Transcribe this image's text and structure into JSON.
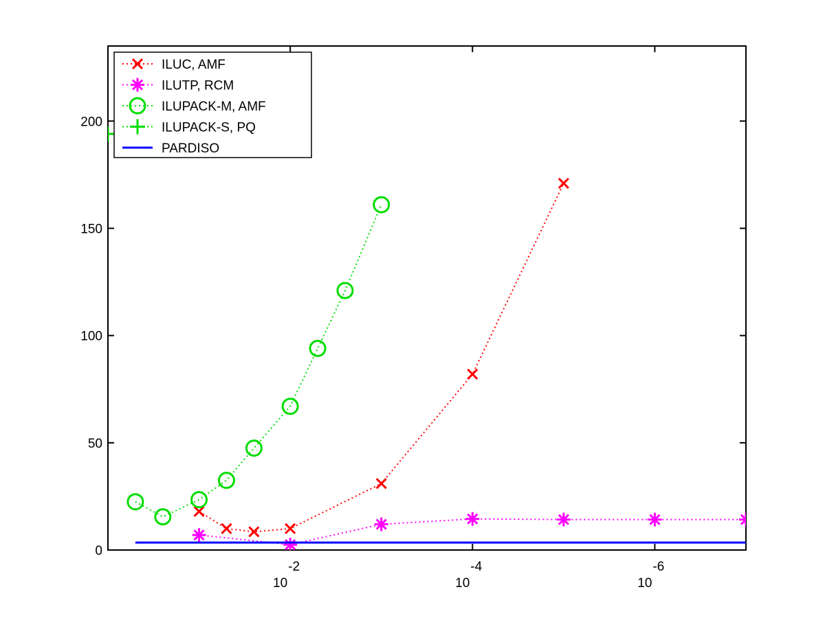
{
  "chart_data": {
    "type": "line",
    "title": "",
    "xlabel": "",
    "ylabel": "",
    "x_scale": "log",
    "x_reversed": true,
    "xlim": [
      1,
      1e-07
    ],
    "ylim": [
      0,
      235
    ],
    "x_ticks": [
      {
        "value": 0.01,
        "base": "10",
        "exponent": "-2"
      },
      {
        "value": 0.0001,
        "base": "10",
        "exponent": "-4"
      },
      {
        "value": 1e-06,
        "base": "10",
        "exponent": "-6"
      }
    ],
    "y_ticks": [
      {
        "value": 0,
        "label": "0"
      },
      {
        "value": 50,
        "label": "50"
      },
      {
        "value": 100,
        "label": "100"
      },
      {
        "value": 150,
        "label": "150"
      },
      {
        "value": 200,
        "label": "200"
      }
    ],
    "grid": false,
    "legend_position": "top-left",
    "series": [
      {
        "name": "ILUC, AMF",
        "color": "#ff0000",
        "line_style": "dotted",
        "marker": "x",
        "points": [
          {
            "x": 0.1,
            "y": 18
          },
          {
            "x": 0.05,
            "y": 10
          },
          {
            "x": 0.025,
            "y": 8.5
          },
          {
            "x": 0.01,
            "y": 10
          },
          {
            "x": 0.001,
            "y": 31
          },
          {
            "x": 0.0001,
            "y": 82
          },
          {
            "x": 1e-05,
            "y": 171
          }
        ]
      },
      {
        "name": "ILUTP, RCM",
        "color": "#ff00ff",
        "line_style": "dotted",
        "marker": "asterisk",
        "points": [
          {
            "x": 0.1,
            "y": 7
          },
          {
            "x": 0.01,
            "y": 2.5
          },
          {
            "x": 0.001,
            "y": 12
          },
          {
            "x": 0.0001,
            "y": 14.5
          },
          {
            "x": 1e-05,
            "y": 14.2
          },
          {
            "x": 1e-06,
            "y": 14.2
          },
          {
            "x": 1e-07,
            "y": 14.2
          }
        ]
      },
      {
        "name": "ILUPACK-M, AMF",
        "color": "#00dd00",
        "line_style": "dotted",
        "marker": "circle",
        "points": [
          {
            "x": 0.5,
            "y": 22.5
          },
          {
            "x": 0.25,
            "y": 15.5
          },
          {
            "x": 0.1,
            "y": 23.5
          },
          {
            "x": 0.05,
            "y": 32.5
          },
          {
            "x": 0.025,
            "y": 47.5
          },
          {
            "x": 0.01,
            "y": 67
          },
          {
            "x": 0.005,
            "y": 94
          },
          {
            "x": 0.0025,
            "y": 121
          },
          {
            "x": 0.001,
            "y": 161
          }
        ]
      },
      {
        "name": "ILUPACK-S, PQ",
        "color": "#00dd00",
        "line_style": "dotted",
        "marker": "plus",
        "points": [
          {
            "x": 1,
            "y": 194
          }
        ]
      },
      {
        "name": "PARDISO",
        "color": "#0000ff",
        "line_style": "solid",
        "marker": "none",
        "points": [
          {
            "x": 0.5,
            "y": 3.5
          },
          {
            "x": 1e-07,
            "y": 3.5
          }
        ]
      }
    ]
  }
}
